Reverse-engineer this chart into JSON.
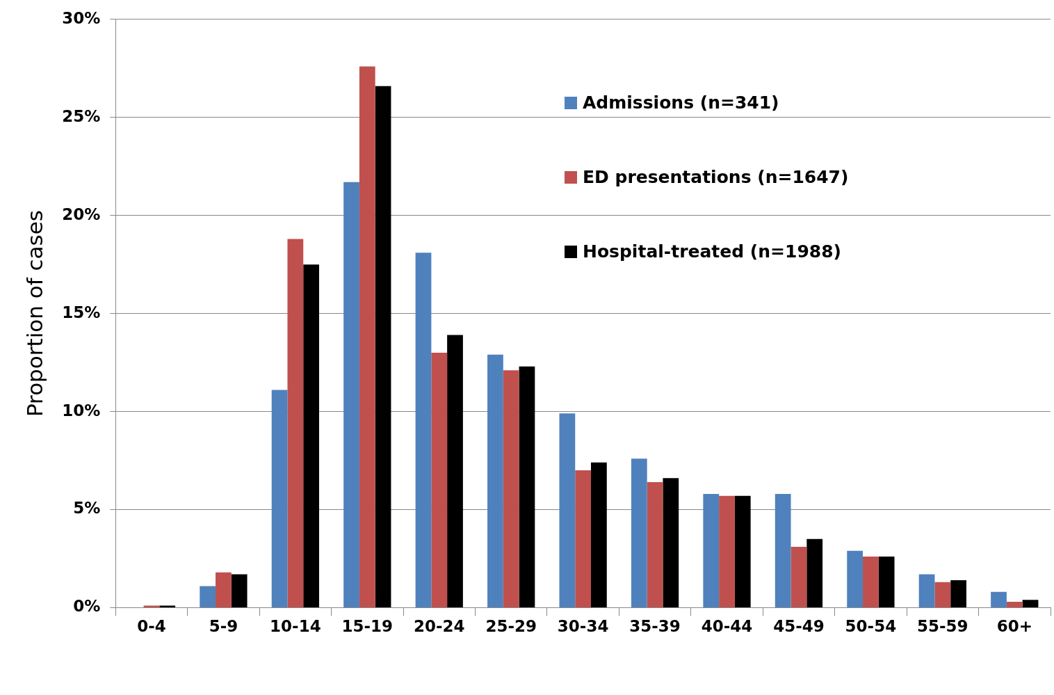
{
  "chart_data": {
    "type": "bar",
    "ylabel": "Proportion of cases",
    "categories": [
      "0-4",
      "5-9",
      "10-14",
      "15-19",
      "20-24",
      "25-29",
      "30-34",
      "35-39",
      "40-44",
      "45-49",
      "50-54",
      "55-59",
      "60+"
    ],
    "series": [
      {
        "name": "Admissions (n=341)",
        "color": "#4f81bd",
        "values": [
          0,
          1.1,
          11.1,
          21.7,
          18.1,
          12.9,
          9.9,
          7.6,
          5.8,
          5.8,
          2.9,
          1.7,
          0.8
        ]
      },
      {
        "name": "ED presentations (n=1647)",
        "color": "#c0504d",
        "values": [
          0.1,
          1.8,
          18.8,
          27.6,
          13.0,
          12.1,
          7.0,
          6.4,
          5.7,
          3.1,
          2.6,
          1.3,
          0.3
        ]
      },
      {
        "name": "Hospital-treated (n=1988)",
        "color": "#000000",
        "values": [
          0.1,
          1.7,
          17.5,
          26.6,
          13.9,
          12.3,
          7.4,
          6.6,
          5.7,
          3.5,
          2.6,
          1.4,
          0.4
        ]
      }
    ],
    "ylim": [
      0,
      30
    ],
    "yticks": [
      {
        "value": 0,
        "label": "0%"
      },
      {
        "value": 5,
        "label": "5%"
      },
      {
        "value": 10,
        "label": "10%"
      },
      {
        "value": 15,
        "label": "15%"
      },
      {
        "value": 20,
        "label": "20%"
      },
      {
        "value": 25,
        "label": "25%"
      },
      {
        "value": 30,
        "label": "30%"
      }
    ],
    "grid": "y",
    "legend": "top right"
  }
}
